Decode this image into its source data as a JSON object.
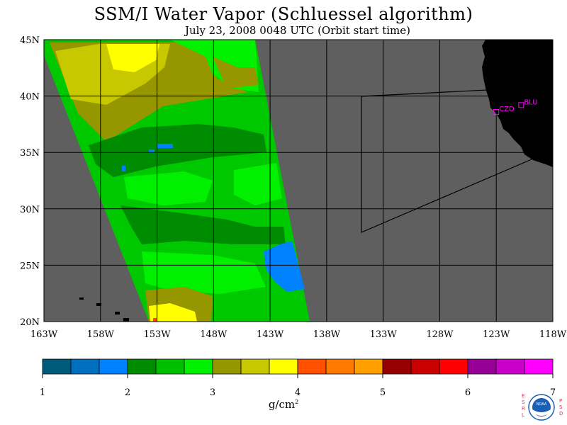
{
  "title": "SSM/I Water Vapor (Schluessel algorithm)",
  "subtitle": "July 23, 2008  0048 UTC  (Orbit start time)",
  "map": {
    "lon_range": [
      -163,
      -118
    ],
    "lat_range": [
      20,
      45
    ],
    "lon_ticks": [
      -163,
      -158,
      -153,
      -148,
      -143,
      -138,
      -133,
      -128,
      -123,
      -118
    ],
    "lat_ticks": [
      20,
      25,
      30,
      35,
      40,
      45
    ],
    "lon_labels": [
      "163W",
      "158W",
      "153W",
      "148W",
      "143W",
      "138W",
      "133W",
      "128W",
      "123W",
      "118W"
    ],
    "lat_labels": [
      "20N",
      "25N",
      "30N",
      "35N",
      "40N",
      "45N"
    ],
    "colors": {
      "no_data": "#5f5f5f",
      "land": "#000000",
      "grid": "#000000",
      "station": "#ff00ff"
    },
    "stations": [
      {
        "name": "CZD",
        "lon": -123.0,
        "lat": 38.6
      },
      {
        "name": "BLU",
        "lon": -120.8,
        "lat": 39.2
      }
    ]
  },
  "colorbar": {
    "min": 1,
    "max": 7,
    "tick_labels": [
      "1",
      "2",
      "3",
      "4",
      "5",
      "6",
      "7"
    ],
    "colors": [
      "#005a7a",
      "#0070be",
      "#0082ff",
      "#008c00",
      "#00be00",
      "#00f000",
      "#969600",
      "#c8c800",
      "#ffff00",
      "#ff5000",
      "#ff7800",
      "#ffa000",
      "#960000",
      "#c80000",
      "#ff0000",
      "#960096",
      "#c800c8",
      "#ff00ff"
    ],
    "unit_base": "g/cm",
    "unit_exp": "2"
  },
  "logo": {
    "left_text": "ESRL",
    "right_text": "PSD",
    "center_text": "NOAA"
  }
}
